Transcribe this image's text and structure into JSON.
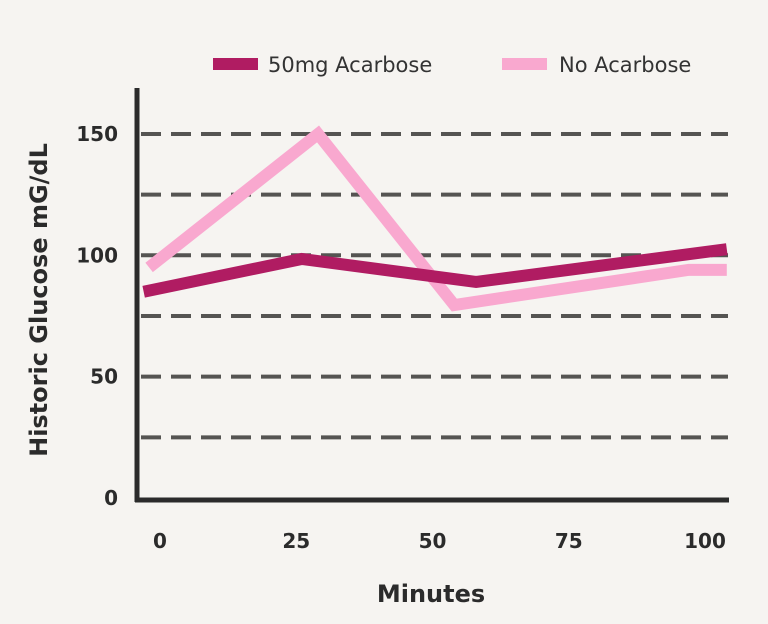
{
  "chart_data": {
    "type": "line",
    "title": "",
    "xlabel": "Minutes",
    "ylabel": "Historic Glucose mG/dL",
    "xlim": [
      -3,
      104
    ],
    "ylim": [
      0,
      150
    ],
    "x_ticks": [
      0,
      25,
      50,
      75,
      100
    ],
    "x_tick_labels": [
      "0",
      "25",
      "50",
      "75",
      "100"
    ],
    "y_ticks": [
      0,
      50,
      100,
      150
    ],
    "y_tick_labels": [
      "0",
      "50",
      "100",
      "150"
    ],
    "gridlines": [
      25,
      50,
      75,
      100,
      125,
      150
    ],
    "grid": true,
    "legend_position": "top",
    "series": [
      {
        "name": "50mg Acarbose",
        "color": "#b01c62",
        "x": [
          -3,
          26,
          58,
          104
        ],
        "y": [
          85,
          98.5,
          89,
          102.5
        ]
      },
      {
        "name": "No Acarbose",
        "color": "#f9a8cf",
        "x": [
          -2,
          29,
          54,
          97,
          104
        ],
        "y": [
          95,
          150,
          79.5,
          94,
          94
        ]
      }
    ]
  }
}
